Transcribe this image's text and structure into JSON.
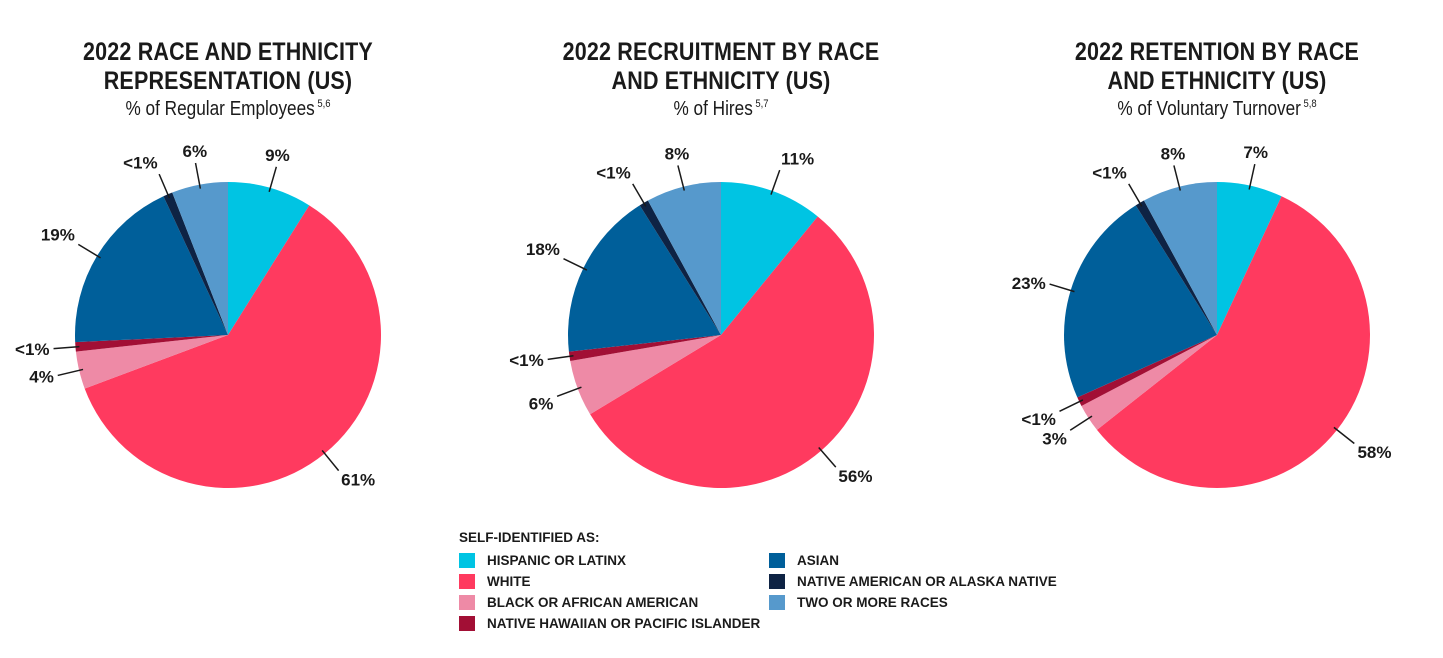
{
  "categories": [
    {
      "key": "hispanic",
      "label": "HISPANIC OR LATINX",
      "color": "#00c4e3"
    },
    {
      "key": "white",
      "label": "WHITE",
      "color": "#ff3a5f"
    },
    {
      "key": "black",
      "label": "BLACK OR AFRICAN AMERICAN",
      "color": "#ee8aa6"
    },
    {
      "key": "nhpi",
      "label": "NATIVE HAWAIIAN OR PACIFIC ISLANDER",
      "color": "#a20f35"
    },
    {
      "key": "asian",
      "label": "ASIAN",
      "color": "#005f9a"
    },
    {
      "key": "aian",
      "label": "NATIVE AMERICAN OR ALASKA NATIVE",
      "color": "#0e2344"
    },
    {
      "key": "two",
      "label": "TWO OR MORE RACES",
      "color": "#5699cc"
    }
  ],
  "legend": {
    "heading": "SELF-IDENTIFIED AS:"
  },
  "chart_data": [
    {
      "type": "pie",
      "title_lines": [
        "2022 RACE AND ETHNICITY",
        "REPRESENTATION (US)"
      ],
      "subtitle": "% of Regular Employees",
      "footnote": "5,6",
      "slices": [
        {
          "category": "HISPANIC OR LATINX",
          "value": 9,
          "label": "9%"
        },
        {
          "category": "WHITE",
          "value": 61,
          "label": "61%"
        },
        {
          "category": "BLACK OR AFRICAN AMERICAN",
          "value": 4,
          "label": "4%"
        },
        {
          "category": "NATIVE HAWAIIAN OR PACIFIC ISLANDER",
          "value": 1,
          "label": "<1%"
        },
        {
          "category": "ASIAN",
          "value": 19,
          "label": "19%"
        },
        {
          "category": "NATIVE AMERICAN OR ALASKA NATIVE",
          "value": 1,
          "label": "<1%"
        },
        {
          "category": "TWO OR MORE RACES",
          "value": 6,
          "label": "6%"
        }
      ]
    },
    {
      "type": "pie",
      "title_lines": [
        "2022 RECRUITMENT BY RACE",
        "AND ETHNICITY (US)"
      ],
      "subtitle": "% of Hires",
      "footnote": "5,7",
      "slices": [
        {
          "category": "HISPANIC OR LATINX",
          "value": 11,
          "label": "11%"
        },
        {
          "category": "WHITE",
          "value": 56,
          "label": "56%"
        },
        {
          "category": "BLACK OR AFRICAN AMERICAN",
          "value": 6,
          "label": "6%"
        },
        {
          "category": "NATIVE HAWAIIAN OR PACIFIC ISLANDER",
          "value": 1,
          "label": "<1%"
        },
        {
          "category": "ASIAN",
          "value": 18,
          "label": "18%"
        },
        {
          "category": "NATIVE AMERICAN OR ALASKA NATIVE",
          "value": 1,
          "label": "<1%"
        },
        {
          "category": "TWO OR MORE RACES",
          "value": 8,
          "label": "8%"
        }
      ]
    },
    {
      "type": "pie",
      "title_lines": [
        "2022 RETENTION BY RACE",
        "AND ETHNICITY (US)"
      ],
      "subtitle": "% of Voluntary Turnover",
      "footnote": "5,8",
      "slices": [
        {
          "category": "HISPANIC OR LATINX",
          "value": 7,
          "label": "7%"
        },
        {
          "category": "WHITE",
          "value": 58,
          "label": "58%"
        },
        {
          "category": "BLACK OR AFRICAN AMERICAN",
          "value": 3,
          "label": "3%"
        },
        {
          "category": "NATIVE HAWAIIAN OR PACIFIC ISLANDER",
          "value": 1,
          "label": "<1%"
        },
        {
          "category": "ASIAN",
          "value": 23,
          "label": "23%"
        },
        {
          "category": "NATIVE AMERICAN OR ALASKA NATIVE",
          "value": 1,
          "label": "<1%"
        },
        {
          "category": "TWO OR MORE RACES",
          "value": 8,
          "label": "8%"
        }
      ]
    }
  ]
}
